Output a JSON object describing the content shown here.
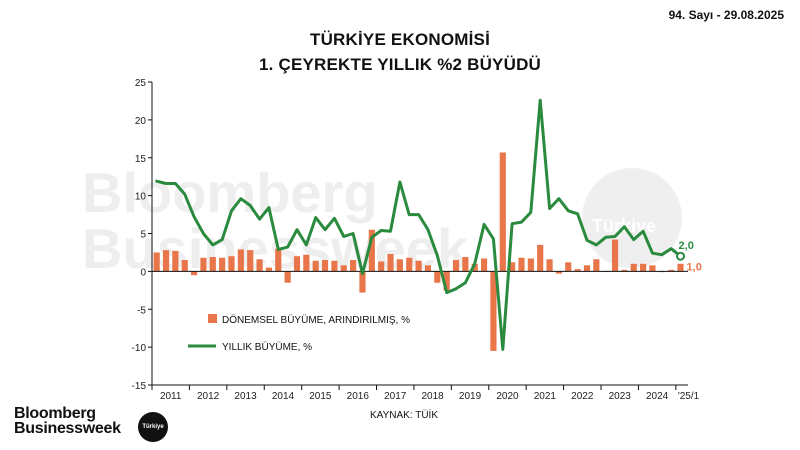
{
  "header": {
    "issue": "94. Sayı - 29.08.2025",
    "title_line1": "TÜRKİYE EKONOMİSİ",
    "title_line2": "1. ÇEYREKTE YILLIK %2 BÜYÜDÜ"
  },
  "branding": {
    "logo_line1": "Bloomberg",
    "logo_line2": "Businessweek",
    "badge": "Türkiye",
    "watermark_line1": "Bloomberg",
    "watermark_line2": "Businessweek",
    "watermark_badge": "Türkiye"
  },
  "colors": {
    "bar": "#e8764a",
    "line": "#2a8a3e",
    "axis": "#111111",
    "watermark": "#eeeeee"
  },
  "chart_data": {
    "type": "bar",
    "title": "TÜRKİYE EKONOMİSİ 1. ÇEYREKTE YILLIK %2 BÜYÜDÜ",
    "source": "KAYNAK: TÜİK",
    "ylim": [
      -15,
      25
    ],
    "yticks": [
      -15,
      -10,
      -5,
      0,
      5,
      10,
      15,
      20,
      25
    ],
    "x_tick_labels": [
      "2011",
      "2012",
      "2013",
      "2014",
      "2015",
      "2016",
      "2017",
      "2018",
      "2019",
      "2020",
      "2021",
      "2022",
      "2023",
      "2024",
      "'25/1"
    ],
    "quarters_per_year": 4,
    "series": [
      {
        "name": "DÖNEMSEL BÜYÜME, ARINDIRILMIŞ, %",
        "kind": "bar",
        "values": [
          2.5,
          2.8,
          2.7,
          1.5,
          -0.5,
          1.8,
          1.9,
          1.8,
          2.0,
          2.9,
          2.8,
          1.6,
          0.5,
          3.0,
          -1.5,
          2.0,
          2.2,
          1.4,
          1.5,
          1.4,
          0.8,
          1.5,
          -2.8,
          5.5,
          1.3,
          2.3,
          1.6,
          1.8,
          1.4,
          0.8,
          -1.5,
          -2.5,
          1.5,
          1.9,
          1.0,
          1.7,
          -10.5,
          15.7,
          1.2,
          1.8,
          1.7,
          3.5,
          1.6,
          -0.3,
          1.2,
          0.3,
          0.8,
          1.6,
          0.0,
          4.2,
          0.2,
          1.0,
          1.0,
          0.8,
          -0.1,
          0.2,
          1.0
        ]
      },
      {
        "name": "YILLIK BÜYÜME, %",
        "kind": "line",
        "values": [
          11.9,
          11.6,
          11.6,
          10.2,
          7.2,
          5.0,
          3.5,
          4.2,
          8.0,
          9.6,
          8.7,
          6.9,
          8.4,
          2.9,
          3.2,
          5.5,
          3.5,
          7.1,
          5.5,
          7.0,
          4.6,
          5.0,
          -0.3,
          4.5,
          5.4,
          5.3,
          11.8,
          7.5,
          7.5,
          5.5,
          2.1,
          -2.8,
          -2.3,
          -1.5,
          1.0,
          6.2,
          4.3,
          -10.3,
          6.3,
          6.5,
          7.8,
          22.6,
          8.3,
          9.6,
          8.0,
          7.6,
          4.1,
          3.5,
          4.5,
          4.6,
          5.9,
          4.2,
          5.3,
          2.4,
          2.2,
          3.0,
          2.0
        ]
      }
    ],
    "annotations": [
      {
        "series": "YILLIK BÜYÜME, %",
        "text": "2,0"
      },
      {
        "series": "DÖNEMSEL BÜYÜME, ARINDIRILMIŞ, %",
        "text": "1,0"
      }
    ],
    "legend_position": "bottom-left"
  }
}
